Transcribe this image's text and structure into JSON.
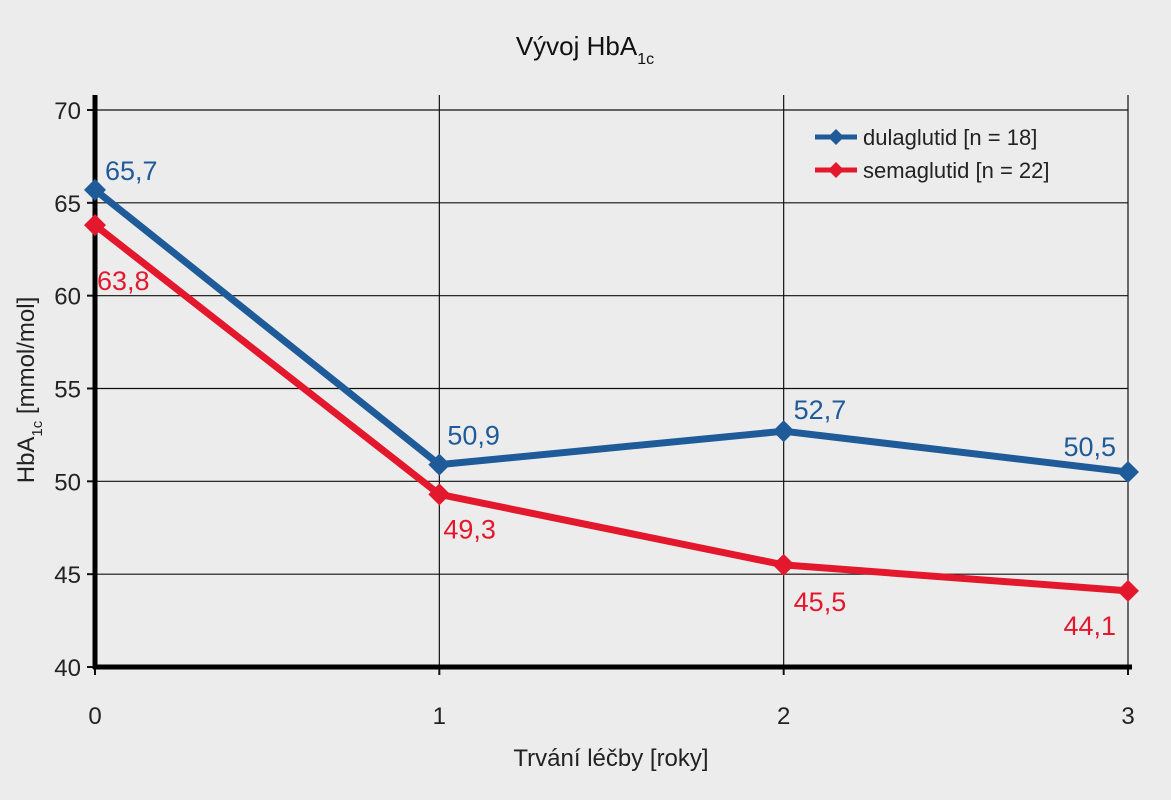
{
  "chart_data": {
    "type": "line",
    "title": {
      "main": "Vývoj HbA",
      "sub": "1c"
    },
    "xlabel": "Trvání léčby [roky]",
    "ylabel": {
      "main": "HbA",
      "sub": "1c",
      "rest": " [mmol/mol]"
    },
    "x": [
      0,
      1,
      2,
      3
    ],
    "x_tick_labels": [
      "0",
      "1",
      "2",
      "3"
    ],
    "xlim": [
      0,
      3
    ],
    "ylim": [
      40,
      70
    ],
    "y_ticks": [
      40,
      45,
      50,
      55,
      60,
      65,
      70
    ],
    "y_tick_labels": [
      "40",
      "45",
      "50",
      "55",
      "60",
      "65",
      "70"
    ],
    "grid": true,
    "legend_position": "top-right",
    "series": [
      {
        "name": "dulaglutid [n = 18]",
        "color": "#1f5a99",
        "marker": "diamond",
        "values": [
          65.7,
          50.9,
          52.7,
          50.5
        ],
        "labels": [
          "65,7",
          "50,9",
          "52,7",
          "50,5"
        ]
      },
      {
        "name": "semaglutid [n = 22]",
        "color": "#e3182d",
        "marker": "diamond",
        "values": [
          63.8,
          49.3,
          45.5,
          44.1
        ],
        "labels": [
          "63,8",
          "49,3",
          "45,5",
          "44,1"
        ]
      }
    ]
  }
}
